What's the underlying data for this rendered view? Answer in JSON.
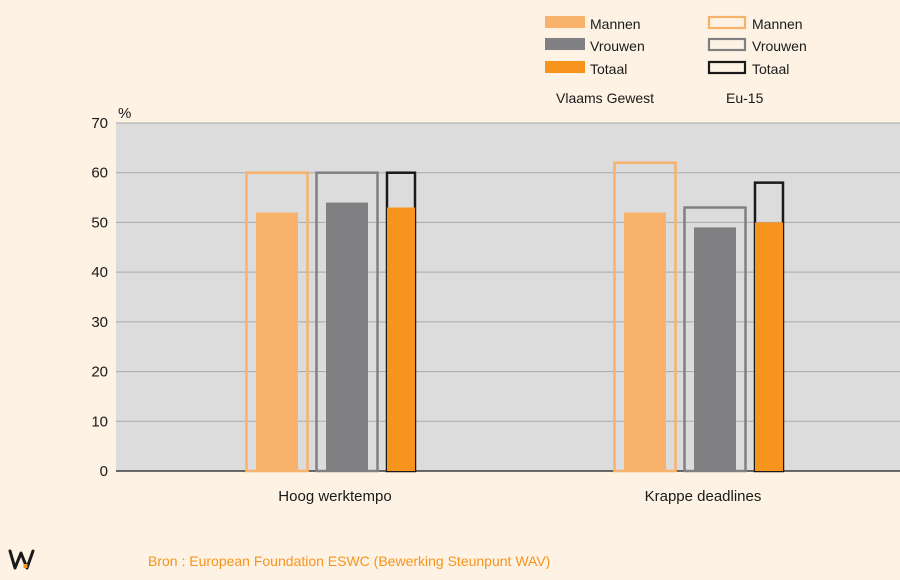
{
  "chart_data": {
    "type": "bar",
    "ylabel": "%",
    "ylim": [
      0,
      70
    ],
    "yticks": [
      0,
      10,
      20,
      30,
      40,
      50,
      60,
      70
    ],
    "categories": [
      "Hoog werktempo",
      "Krappe deadlines"
    ],
    "groups": [
      {
        "name": "Vlaams Gewest",
        "style": "filled",
        "series": [
          {
            "name": "Mannen",
            "values": [
              52,
              52
            ],
            "color": "#f9b26b"
          },
          {
            "name": "Vrouwen",
            "values": [
              54,
              49
            ],
            "color": "#808083"
          },
          {
            "name": "Totaal",
            "values": [
              53,
              50
            ],
            "color": "#f7941e"
          }
        ]
      },
      {
        "name": "Eu-15",
        "style": "outline",
        "series": [
          {
            "name": "Mannen",
            "values": [
              60,
              62
            ],
            "color": "#f9b26b"
          },
          {
            "name": "Vrouwen",
            "values": [
              60,
              53
            ],
            "color": "#808083"
          },
          {
            "name": "Totaal",
            "values": [
              60,
              58
            ],
            "color": "#1a1a1a"
          }
        ]
      }
    ],
    "grid": true,
    "legend_position": "top-right",
    "plot_background": "#dcdcdc"
  },
  "source": "Bron : European Foundation ESWC (Bewerking Steunpunt WAV)",
  "logo": {
    "text": "W",
    "colors": [
      "#1a1a1a",
      "#f7941e"
    ]
  }
}
